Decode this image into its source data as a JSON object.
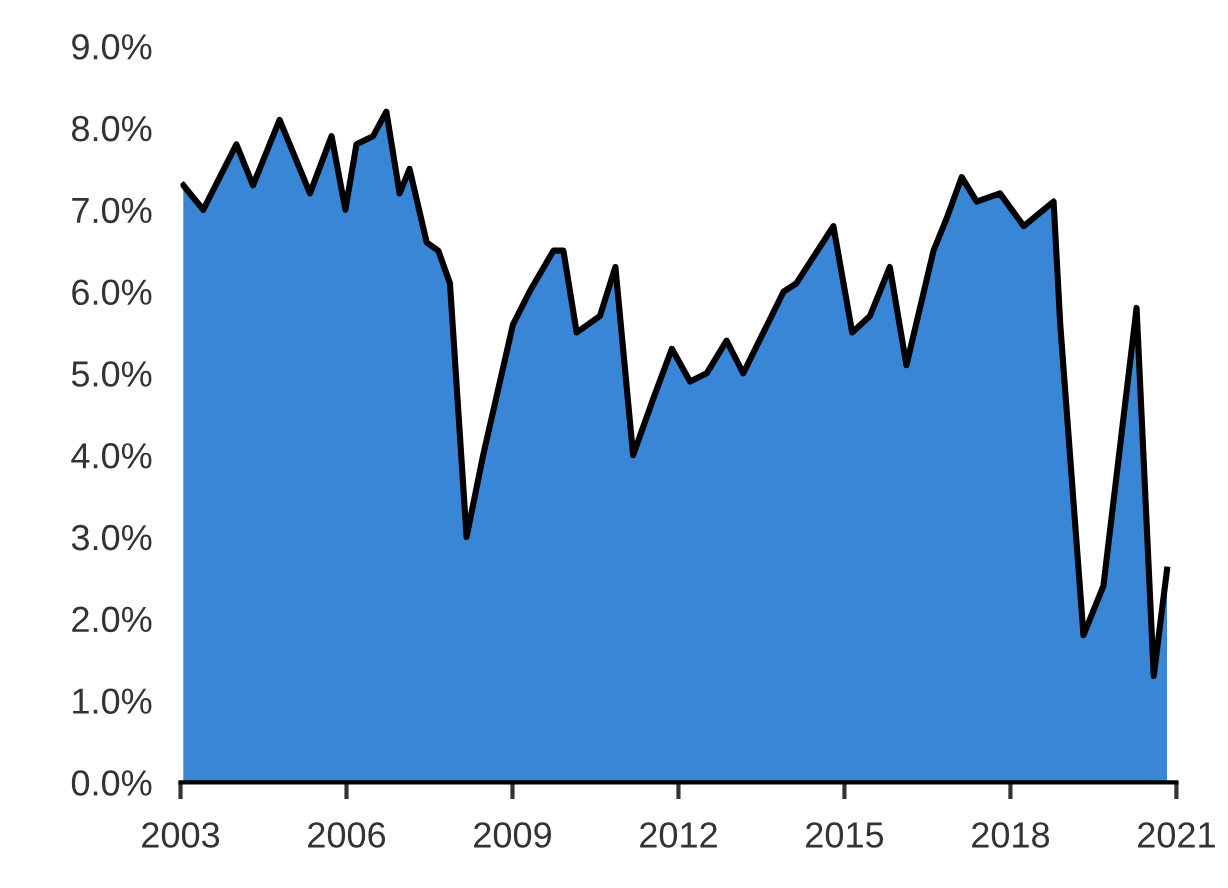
{
  "chart_data": {
    "type": "area",
    "x": [
      2003.05,
      2003.41,
      2004.01,
      2004.31,
      2004.79,
      2005.34,
      2005.73,
      2005.98,
      2006.18,
      2006.48,
      2006.72,
      2006.96,
      2007.14,
      2007.45,
      2007.66,
      2007.87,
      2008.17,
      2008.47,
      2009.01,
      2009.31,
      2009.74,
      2009.92,
      2010.16,
      2010.58,
      2010.86,
      2011.18,
      2011.55,
      2011.88,
      2012.21,
      2012.51,
      2012.87,
      2013.17,
      2013.9,
      2014.13,
      2014.8,
      2015.14,
      2015.46,
      2015.82,
      2016.12,
      2016.61,
      2016.85,
      2017.12,
      2017.39,
      2017.81,
      2018.24,
      2018.78,
      2018.9,
      2019.32,
      2019.68,
      2020.28,
      2020.59,
      2020.83
    ],
    "series": [
      {
        "color": "#3a86d6",
        "values": [
          7.3,
          7.0,
          7.8,
          7.3,
          8.1,
          7.2,
          7.9,
          7.0,
          7.8,
          7.9,
          8.2,
          7.2,
          7.5,
          6.6,
          6.5,
          6.1,
          3.0,
          4.0,
          5.6,
          6.0,
          6.5,
          6.5,
          5.5,
          5.7,
          6.3,
          4.0,
          4.7,
          5.3,
          4.9,
          5.0,
          5.4,
          5.0,
          6.0,
          6.1,
          6.8,
          5.5,
          5.7,
          6.3,
          5.1,
          6.5,
          6.9,
          7.4,
          7.1,
          7.2,
          6.8,
          7.1,
          5.6,
          1.8,
          2.4,
          5.8,
          1.3,
          2.6
        ]
      }
    ],
    "xlim": [
      2003,
      2021
    ],
    "xticks": [
      2003,
      2006,
      2009,
      2012,
      2015,
      2018,
      2021
    ],
    "ylim": [
      0,
      9
    ],
    "yticks": [
      {
        "value": 0,
        "label": "0.0%"
      },
      {
        "value": 1,
        "label": "1.0%"
      },
      {
        "value": 2,
        "label": "2.0%"
      },
      {
        "value": 3,
        "label": "3.0%"
      },
      {
        "value": 4,
        "label": "4.0%"
      },
      {
        "value": 5,
        "label": "5.0%"
      },
      {
        "value": 6,
        "label": "6.0%"
      },
      {
        "value": 7,
        "label": "7.0%"
      },
      {
        "value": 8,
        "label": "8.0%"
      },
      {
        "value": 9,
        "label": "9.0%"
      }
    ],
    "grid": false,
    "legend": false
  }
}
